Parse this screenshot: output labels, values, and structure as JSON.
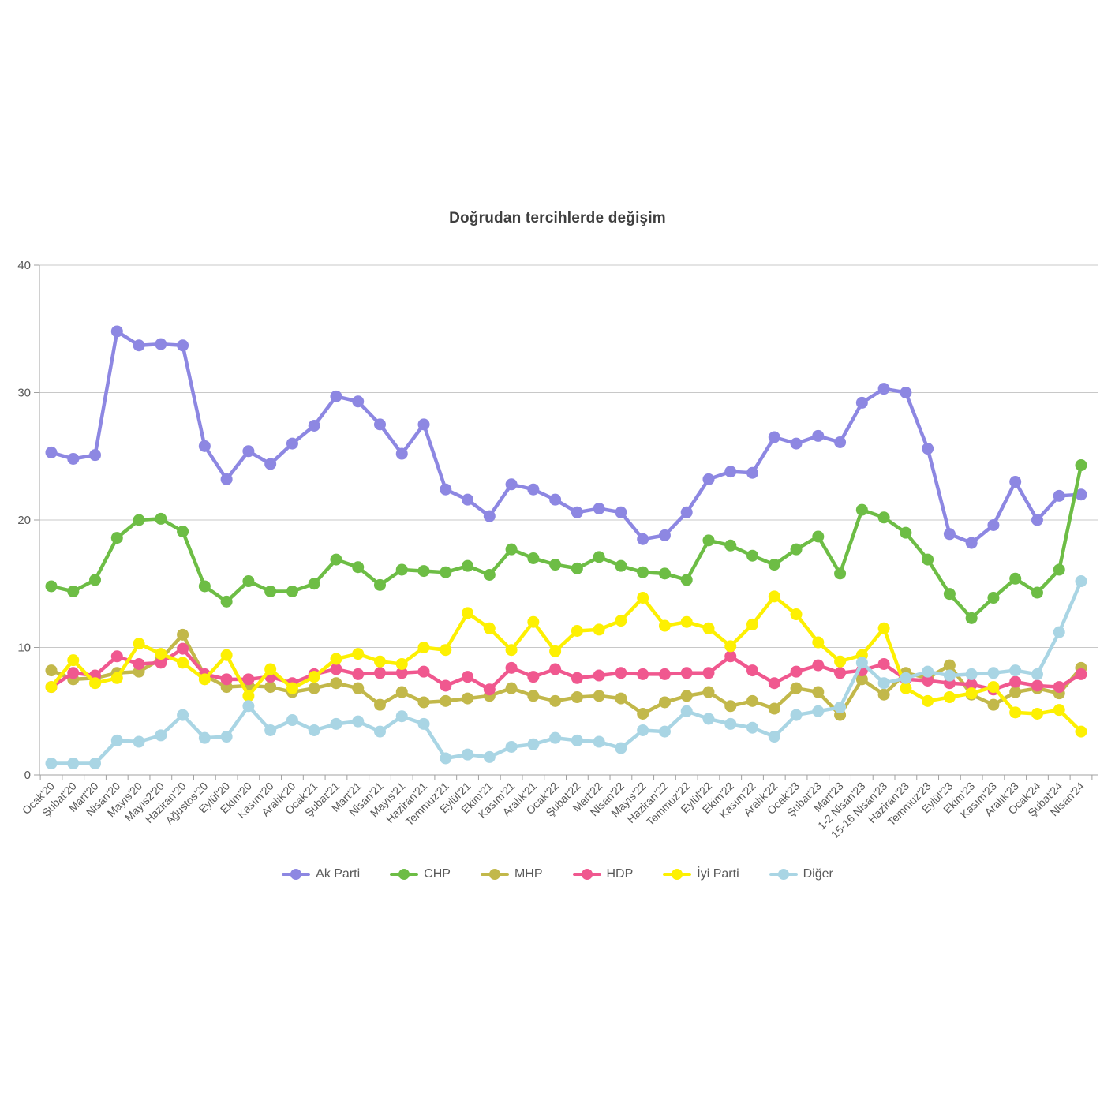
{
  "chart_data": {
    "type": "line",
    "title": "Doğrudan tercihlerde değişim",
    "xlabel": "",
    "ylabel": "",
    "ylim": [
      0,
      40
    ],
    "y_ticks": [
      0,
      10,
      20,
      30,
      40
    ],
    "grid": true,
    "legend_position": "bottom",
    "categories": [
      "Ocak'20",
      "Şubat'20",
      "Mart'20",
      "Nisan'20",
      "Mayıs'20",
      "Mayıs2'20",
      "Haziran'20",
      "Ağustos'20",
      "Eylül'20",
      "Ekim'20",
      "Kasım'20",
      "Aralık'20",
      "Ocak'21",
      "Şubat'21",
      "Mart'21",
      "Nisan'21",
      "Mayıs'21",
      "Haziran'21",
      "Temmuz'21",
      "Eylül'21",
      "Ekim'21",
      "Kasım'21",
      "Aralık'21",
      "Ocak'22",
      "Şubat'22",
      "Mart'22",
      "Nisan'22",
      "Mayıs'22",
      "Haziran'22",
      "Temmuz'22",
      "Eylül'22",
      "Ekim'22",
      "Kasım'22",
      "Aralık'22",
      "Ocak'23",
      "Şubat'23",
      "Mart'23",
      "1-2 Nisan'23",
      "15-16 Nisan'23",
      "Haziran'23",
      "Temmuz'23",
      "Eylül'23",
      "Ekim'23",
      "Kasım'23",
      "Aralık'23",
      "Ocak'24",
      "Şubat'24",
      "Nisan'24"
    ],
    "series": [
      {
        "name": "Ak Parti",
        "color": "#8d87e2",
        "values": [
          25.3,
          24.8,
          25.1,
          34.8,
          33.7,
          33.8,
          33.7,
          25.8,
          23.2,
          25.4,
          24.4,
          26.0,
          27.4,
          29.7,
          29.3,
          27.5,
          25.2,
          27.5,
          22.4,
          21.6,
          20.3,
          22.8,
          22.4,
          21.6,
          20.6,
          20.9,
          20.6,
          18.5,
          18.8,
          20.6,
          23.2,
          23.8,
          23.7,
          26.5,
          26.0,
          26.6,
          26.1,
          29.2,
          30.3,
          30.0,
          25.6,
          18.9,
          18.2,
          19.6,
          23.0,
          20.0,
          21.9,
          22.0
        ]
      },
      {
        "name": "CHP",
        "color": "#6dbd45",
        "values": [
          14.8,
          14.4,
          15.3,
          18.6,
          20.0,
          20.1,
          19.1,
          14.8,
          13.6,
          15.2,
          14.4,
          14.4,
          15.0,
          16.9,
          16.3,
          14.9,
          16.1,
          16.0,
          15.9,
          16.4,
          15.7,
          17.7,
          17.0,
          16.5,
          16.2,
          17.1,
          16.4,
          15.9,
          15.8,
          15.3,
          18.4,
          18.0,
          17.2,
          16.5,
          17.7,
          18.7,
          15.8,
          20.8,
          20.2,
          19.0,
          16.9,
          14.2,
          12.3,
          13.9,
          15.4,
          14.3,
          16.1,
          24.3
        ]
      },
      {
        "name": "MHP",
        "color": "#c2b84a",
        "values": [
          8.2,
          7.5,
          7.6,
          8.0,
          8.1,
          9.1,
          11.0,
          7.8,
          6.9,
          7.0,
          6.9,
          6.5,
          6.8,
          7.2,
          6.8,
          5.5,
          6.5,
          5.7,
          5.8,
          6.0,
          6.2,
          6.8,
          6.2,
          5.8,
          6.1,
          6.2,
          6.0,
          4.8,
          5.7,
          6.2,
          6.5,
          5.4,
          5.8,
          5.2,
          6.8,
          6.5,
          4.7,
          7.5,
          6.3,
          8.0,
          7.6,
          8.6,
          6.3,
          5.5,
          6.5,
          6.8,
          6.4,
          8.4
        ]
      },
      {
        "name": "HDP",
        "color": "#f0588f",
        "values": [
          6.9,
          8.0,
          7.8,
          9.3,
          8.7,
          8.8,
          9.9,
          7.9,
          7.5,
          7.5,
          7.7,
          7.2,
          7.9,
          8.3,
          7.9,
          8.0,
          8.0,
          8.1,
          7.0,
          7.7,
          6.7,
          8.4,
          7.7,
          8.3,
          7.6,
          7.8,
          8.0,
          7.9,
          7.9,
          8.0,
          8.0,
          9.3,
          8.2,
          7.2,
          8.1,
          8.6,
          8.0,
          8.2,
          8.7,
          7.5,
          7.4,
          7.2,
          7.1,
          6.7,
          7.3,
          7.0,
          6.9,
          7.9
        ]
      },
      {
        "name": "İyi Parti",
        "color": "#fdf002",
        "values": [
          6.9,
          9.0,
          7.2,
          7.6,
          10.3,
          9.5,
          8.8,
          7.5,
          9.4,
          6.2,
          8.3,
          6.8,
          7.7,
          9.1,
          9.5,
          8.9,
          8.7,
          10.0,
          9.8,
          12.7,
          11.5,
          9.8,
          12.0,
          9.7,
          11.3,
          11.4,
          12.1,
          13.9,
          11.7,
          12.0,
          11.5,
          10.1,
          11.8,
          14.0,
          12.6,
          10.4,
          8.9,
          9.4,
          11.5,
          6.8,
          5.8,
          6.1,
          6.4,
          6.9,
          4.9,
          4.8,
          5.1,
          3.4
        ]
      },
      {
        "name": "Diğer",
        "color": "#a9d5e4",
        "values": [
          0.9,
          0.9,
          0.9,
          2.7,
          2.6,
          3.1,
          4.7,
          2.9,
          3.0,
          5.4,
          3.5,
          4.3,
          3.5,
          4.0,
          4.2,
          3.4,
          4.6,
          4.0,
          1.3,
          1.6,
          1.4,
          2.2,
          2.4,
          2.9,
          2.7,
          2.6,
          2.1,
          3.5,
          3.4,
          5.0,
          4.4,
          4.0,
          3.7,
          3.0,
          4.7,
          5.0,
          5.3,
          8.8,
          7.2,
          7.6,
          8.1,
          7.8,
          7.9,
          8.0,
          8.2,
          7.9,
          11.2,
          15.2
        ]
      }
    ]
  },
  "style": {
    "grid_color": "#c8c8c8",
    "axis_color": "#a0a0a0",
    "tick_label_color": "#595959",
    "title_color": "#3f3f3f",
    "background": "#ffffff"
  }
}
